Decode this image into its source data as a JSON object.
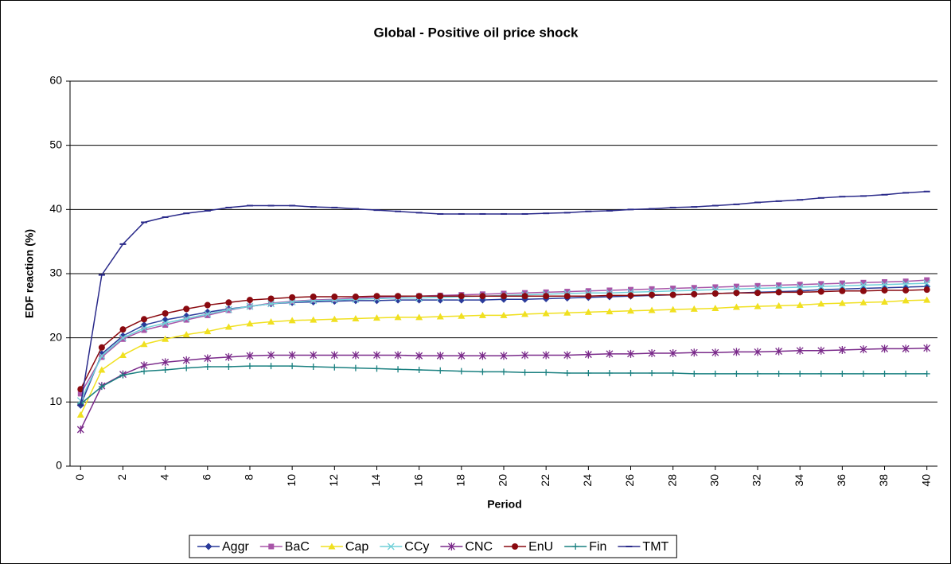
{
  "chart_data": {
    "type": "line",
    "title": "Global - Positive oil price shock",
    "x_label": "Period",
    "y_label": "EDF reaction (%)",
    "x": [
      0,
      1,
      2,
      3,
      4,
      5,
      6,
      7,
      8,
      9,
      10,
      11,
      12,
      13,
      14,
      15,
      16,
      17,
      18,
      19,
      20,
      21,
      22,
      23,
      24,
      25,
      26,
      27,
      28,
      29,
      30,
      31,
      32,
      33,
      34,
      35,
      36,
      37,
      38,
      39,
      40
    ],
    "xlim": [
      -0.5,
      40.5
    ],
    "xticks": [
      0,
      2,
      4,
      6,
      8,
      10,
      12,
      14,
      16,
      18,
      20,
      22,
      24,
      26,
      28,
      30,
      32,
      34,
      36,
      38,
      40
    ],
    "ylim": [
      0,
      60
    ],
    "yticks": [
      0,
      10,
      20,
      30,
      40,
      50,
      60
    ],
    "grid": true,
    "legend": "bottom",
    "series": [
      {
        "name": "Aggr",
        "color": "#2a3a9a",
        "marker": "diamond",
        "values": [
          9.5,
          17.5,
          20.3,
          22,
          22.8,
          23.4,
          24,
          24.5,
          24.9,
          25.3,
          25.5,
          25.6,
          25.7,
          25.8,
          25.8,
          25.9,
          25.9,
          25.9,
          25.9,
          25.9,
          26,
          26,
          26.1,
          26.2,
          26.3,
          26.4,
          26.5,
          26.6,
          26.7,
          26.8,
          26.9,
          27,
          27.1,
          27.2,
          27.3,
          27.5,
          27.6,
          27.7,
          27.8,
          27.9,
          28
        ]
      },
      {
        "name": "BaC",
        "color": "#a855a8",
        "marker": "square",
        "values": [
          11.3,
          17,
          19.8,
          21.2,
          22,
          22.8,
          23.5,
          24.3,
          24.9,
          25.4,
          25.7,
          25.9,
          26,
          26.2,
          26.3,
          26.4,
          26.5,
          26.6,
          26.7,
          26.8,
          26.9,
          27,
          27.1,
          27.2,
          27.3,
          27.4,
          27.5,
          27.6,
          27.7,
          27.8,
          27.9,
          28,
          28.1,
          28.2,
          28.3,
          28.4,
          28.5,
          28.6,
          28.7,
          28.8,
          29
        ]
      },
      {
        "name": "Cap",
        "color": "#f0e020",
        "marker": "triangle",
        "values": [
          8,
          15,
          17.3,
          19,
          19.8,
          20.5,
          21,
          21.7,
          22.2,
          22.5,
          22.7,
          22.8,
          22.9,
          23,
          23.1,
          23.2,
          23.2,
          23.3,
          23.4,
          23.5,
          23.5,
          23.7,
          23.8,
          23.9,
          24,
          24.1,
          24.2,
          24.3,
          24.4,
          24.5,
          24.6,
          24.8,
          24.9,
          25,
          25.1,
          25.3,
          25.4,
          25.5,
          25.6,
          25.8,
          25.9
        ]
      },
      {
        "name": "CCy",
        "color": "#70d0d8",
        "marker": "x",
        "values": [
          10.2,
          17.2,
          20,
          21.5,
          22.3,
          23,
          23.7,
          24.4,
          24.9,
          25.3,
          25.6,
          25.8,
          25.9,
          26,
          26.1,
          26.2,
          26.2,
          26.3,
          26.4,
          26.5,
          26.6,
          26.7,
          26.8,
          26.9,
          27,
          27,
          27.1,
          27.2,
          27.3,
          27.4,
          27.5,
          27.6,
          27.7,
          27.8,
          27.9,
          28,
          28.1,
          28.2,
          28.3,
          28.4,
          28.5
        ]
      },
      {
        "name": "CNC",
        "color": "#7a2a8a",
        "marker": "star",
        "values": [
          5.7,
          12.5,
          14.3,
          15.7,
          16.2,
          16.5,
          16.8,
          17,
          17.2,
          17.3,
          17.3,
          17.3,
          17.3,
          17.3,
          17.3,
          17.3,
          17.2,
          17.2,
          17.2,
          17.2,
          17.2,
          17.3,
          17.3,
          17.3,
          17.4,
          17.5,
          17.5,
          17.6,
          17.6,
          17.7,
          17.7,
          17.8,
          17.8,
          17.9,
          18,
          18,
          18.1,
          18.2,
          18.3,
          18.3,
          18.4
        ]
      },
      {
        "name": "EnU",
        "color": "#8a0a10",
        "marker": "circle",
        "values": [
          12,
          18.5,
          21.3,
          22.9,
          23.8,
          24.5,
          25.1,
          25.5,
          25.9,
          26.1,
          26.3,
          26.4,
          26.4,
          26.4,
          26.5,
          26.5,
          26.5,
          26.5,
          26.5,
          26.5,
          26.5,
          26.5,
          26.5,
          26.5,
          26.5,
          26.6,
          26.6,
          26.7,
          26.7,
          26.8,
          26.9,
          27,
          27,
          27.1,
          27.1,
          27.2,
          27.3,
          27.3,
          27.4,
          27.4,
          27.5
        ]
      },
      {
        "name": "Fin",
        "color": "#1a8080",
        "marker": "plus",
        "values": [
          9.7,
          12.4,
          14.2,
          14.8,
          15,
          15.3,
          15.5,
          15.5,
          15.6,
          15.6,
          15.6,
          15.5,
          15.4,
          15.3,
          15.2,
          15.1,
          15,
          14.9,
          14.8,
          14.7,
          14.7,
          14.6,
          14.6,
          14.5,
          14.5,
          14.5,
          14.5,
          14.5,
          14.5,
          14.4,
          14.4,
          14.4,
          14.4,
          14.4,
          14.4,
          14.4,
          14.4,
          14.4,
          14.4,
          14.4,
          14.4
        ]
      },
      {
        "name": "TMT",
        "color": "#2a2a8a",
        "marker": "dash",
        "values": [
          9.5,
          29.8,
          34.6,
          38,
          38.8,
          39.4,
          39.8,
          40.3,
          40.6,
          40.6,
          40.6,
          40.4,
          40.3,
          40.1,
          39.9,
          39.7,
          39.5,
          39.3,
          39.3,
          39.3,
          39.3,
          39.3,
          39.4,
          39.5,
          39.7,
          39.8,
          40,
          40.1,
          40.3,
          40.4,
          40.6,
          40.8,
          41.1,
          41.3,
          41.5,
          41.8,
          42,
          42.1,
          42.3,
          42.6,
          42.8
        ]
      }
    ]
  }
}
